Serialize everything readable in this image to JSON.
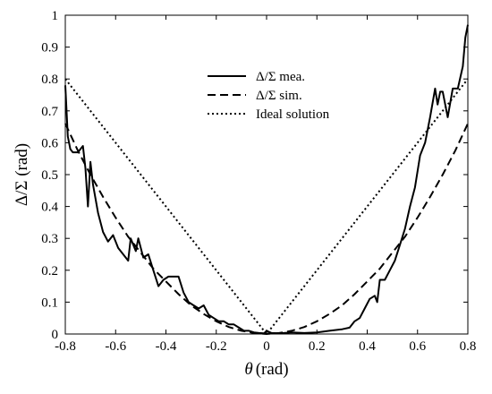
{
  "chart_data": {
    "type": "line",
    "title": "",
    "xlabel_symbol": "θ",
    "xlabel_unit": "(rad)",
    "ylabel": "Δ/Σ (rad)",
    "xlim": [
      -0.8,
      0.8
    ],
    "ylim": [
      0,
      1
    ],
    "xticks": [
      -0.8,
      -0.6,
      -0.4,
      -0.2,
      0,
      0.2,
      0.4,
      0.6,
      0.8
    ],
    "xtick_labels": [
      "-0.8",
      "-0.6",
      "-0.4",
      "-0.2",
      "0",
      "0.2",
      "0.4",
      "0.6",
      "0.8"
    ],
    "yticks": [
      0,
      0.1,
      0.2,
      0.3,
      0.4,
      0.5,
      0.6,
      0.7,
      0.8,
      0.9,
      1
    ],
    "ytick_labels": [
      "0",
      "0.1",
      "0.2",
      "0.3",
      "0.4",
      "0.5",
      "0.6",
      "0.7",
      "0.8",
      "0.9",
      "1"
    ],
    "grid": false,
    "legend_position": "top-center",
    "series": [
      {
        "name": "Δ/Σ mea.",
        "style": "solid",
        "x": [
          -0.8,
          -0.79,
          -0.78,
          -0.77,
          -0.75,
          -0.73,
          -0.72,
          -0.71,
          -0.7,
          -0.69,
          -0.67,
          -0.65,
          -0.63,
          -0.61,
          -0.59,
          -0.57,
          -0.55,
          -0.54,
          -0.52,
          -0.51,
          -0.49,
          -0.47,
          -0.45,
          -0.43,
          -0.41,
          -0.39,
          -0.37,
          -0.35,
          -0.33,
          -0.31,
          -0.29,
          -0.27,
          -0.25,
          -0.23,
          -0.21,
          -0.19,
          -0.17,
          -0.15,
          -0.13,
          -0.11,
          -0.09,
          -0.07,
          -0.05,
          -0.03,
          -0.01,
          0,
          0.02,
          0.05,
          0.1,
          0.15,
          0.2,
          0.25,
          0.3,
          0.33,
          0.35,
          0.37,
          0.39,
          0.41,
          0.43,
          0.44,
          0.45,
          0.47,
          0.49,
          0.51,
          0.53,
          0.55,
          0.57,
          0.59,
          0.61,
          0.63,
          0.65,
          0.67,
          0.68,
          0.69,
          0.7,
          0.72,
          0.74,
          0.76,
          0.78,
          0.79,
          0.8
        ],
        "y": [
          0.78,
          0.62,
          0.58,
          0.57,
          0.57,
          0.59,
          0.52,
          0.4,
          0.54,
          0.47,
          0.38,
          0.32,
          0.29,
          0.31,
          0.27,
          0.25,
          0.23,
          0.3,
          0.26,
          0.3,
          0.24,
          0.25,
          0.2,
          0.15,
          0.17,
          0.18,
          0.18,
          0.18,
          0.13,
          0.1,
          0.09,
          0.08,
          0.09,
          0.06,
          0.05,
          0.04,
          0.04,
          0.03,
          0.03,
          0.02,
          0.01,
          0.01,
          0.005,
          0.003,
          0.002,
          0.01,
          0.003,
          0.002,
          0.005,
          0.003,
          0.005,
          0.01,
          0.015,
          0.02,
          0.04,
          0.05,
          0.08,
          0.11,
          0.12,
          0.1,
          0.17,
          0.17,
          0.2,
          0.23,
          0.28,
          0.33,
          0.4,
          0.46,
          0.56,
          0.6,
          0.68,
          0.77,
          0.72,
          0.76,
          0.76,
          0.68,
          0.77,
          0.77,
          0.84,
          0.93,
          0.97
        ]
      },
      {
        "name": "Δ/Σ sim.",
        "style": "dashed",
        "x": [
          -0.8,
          -0.75,
          -0.7,
          -0.65,
          -0.6,
          -0.55,
          -0.5,
          -0.45,
          -0.4,
          -0.35,
          -0.3,
          -0.25,
          -0.2,
          -0.15,
          -0.1,
          -0.05,
          0,
          0.05,
          0.1,
          0.15,
          0.2,
          0.25,
          0.3,
          0.35,
          0.4,
          0.45,
          0.5,
          0.55,
          0.6,
          0.65,
          0.7,
          0.75,
          0.8
        ],
        "y": [
          0.66,
          0.575,
          0.5,
          0.43,
          0.365,
          0.305,
          0.255,
          0.205,
          0.165,
          0.125,
          0.09,
          0.063,
          0.04,
          0.022,
          0.01,
          0.003,
          0,
          0.003,
          0.01,
          0.022,
          0.04,
          0.063,
          0.09,
          0.125,
          0.165,
          0.205,
          0.255,
          0.305,
          0.365,
          0.43,
          0.5,
          0.575,
          0.66
        ]
      },
      {
        "name": "Ideal solution",
        "style": "dotted",
        "x": [
          -0.8,
          0,
          0.8
        ],
        "y": [
          0.8,
          0,
          0.8
        ]
      }
    ]
  }
}
